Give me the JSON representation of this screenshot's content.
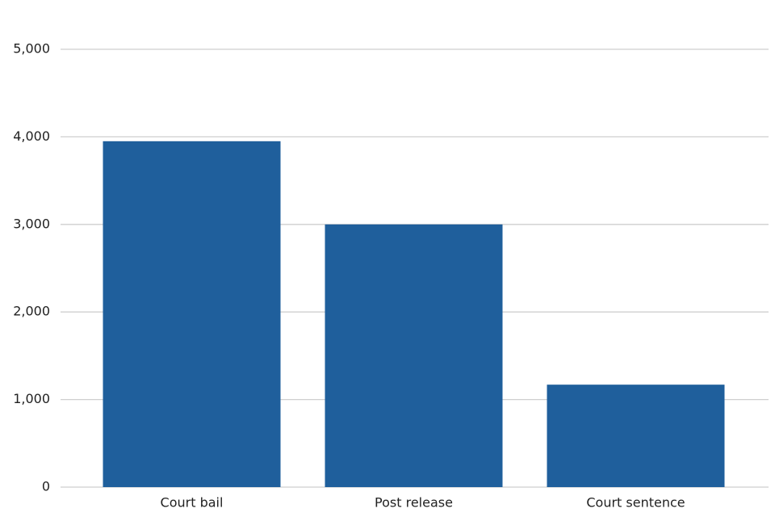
{
  "chart_data": {
    "type": "bar",
    "categories": [
      "Court bail",
      "Post release",
      "Court sentence"
    ],
    "values": [
      3950,
      3000,
      1170
    ],
    "color": "#1f5f9c",
    "ylim": [
      0,
      5000
    ],
    "yticks": [
      0,
      {
        "value": 1000,
        "label": "1,000"
      },
      {
        "value": 2000,
        "label": "2,000"
      },
      {
        "value": 3000,
        "label": "3,000"
      },
      {
        "value": 4000,
        "label": "4,000"
      },
      {
        "value": 5000,
        "label": "5,000"
      }
    ],
    "grid": true
  }
}
